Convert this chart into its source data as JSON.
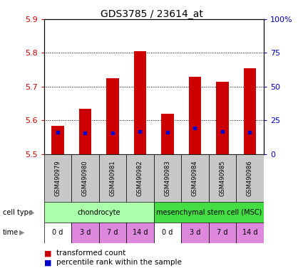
{
  "title": "GDS3785 / 23614_at",
  "samples": [
    "GSM490979",
    "GSM490980",
    "GSM490981",
    "GSM490982",
    "GSM490983",
    "GSM490984",
    "GSM490985",
    "GSM490986"
  ],
  "transformed_count": [
    5.585,
    5.635,
    5.725,
    5.805,
    5.62,
    5.73,
    5.715,
    5.755
  ],
  "bar_base": 5.5,
  "percentile_y": [
    5.565,
    5.562,
    5.562,
    5.568,
    5.565,
    5.578,
    5.568,
    5.565
  ],
  "left_ylim": [
    5.5,
    5.9
  ],
  "right_ylim": [
    0,
    100
  ],
  "left_yticks": [
    5.5,
    5.6,
    5.7,
    5.8,
    5.9
  ],
  "right_yticks": [
    0,
    25,
    50,
    75,
    100
  ],
  "right_yticklabels": [
    "0",
    "25",
    "50",
    "75",
    "100%"
  ],
  "dotted_lines": [
    5.6,
    5.7,
    5.8
  ],
  "cell_types": [
    {
      "label": "chondrocyte",
      "start": 0,
      "end": 4,
      "color": "#aaffaa"
    },
    {
      "label": "mesenchymal stem cell (MSC)",
      "start": 4,
      "end": 8,
      "color": "#44dd44"
    }
  ],
  "time_labels": [
    "0 d",
    "3 d",
    "7 d",
    "14 d",
    "0 d",
    "3 d",
    "7 d",
    "14 d"
  ],
  "time_colors": [
    "#ffffff",
    "#dd88dd",
    "#dd88dd",
    "#dd88dd",
    "#ffffff",
    "#dd88dd",
    "#dd88dd",
    "#dd88dd"
  ],
  "bar_color": "#cc0000",
  "percentile_color": "#0000cc",
  "tick_label_color_left": "#cc0000",
  "tick_label_color_right": "#0000cc",
  "background_color": "#ffffff",
  "sample_bg_color": "#c8c8c8",
  "legend_red_label": "transformed count",
  "legend_blue_label": "percentile rank within the sample"
}
